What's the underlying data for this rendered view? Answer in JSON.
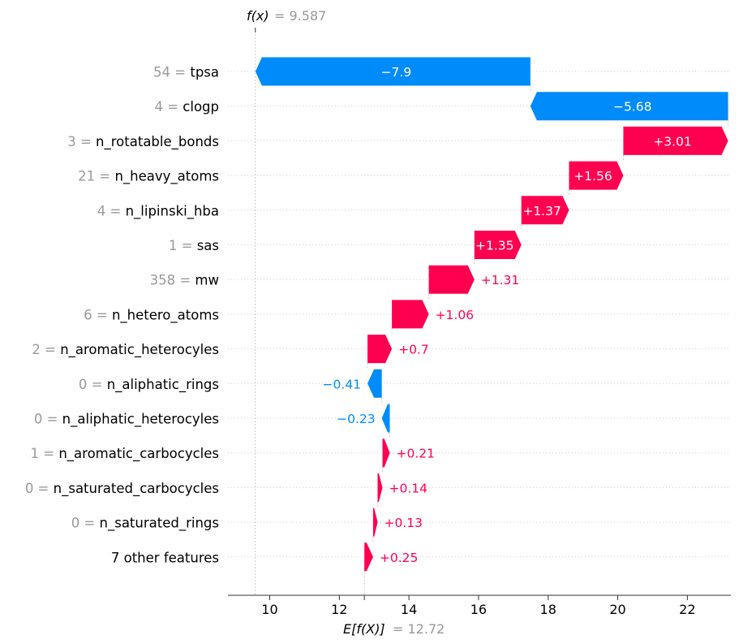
{
  "chart_data": {
    "type": "waterfall",
    "fx_label": "f(x)",
    "fx_value_text": "= 9.587",
    "fx_value": 9.587,
    "efx_label": "E[f(X)]",
    "efx_value_text": "= 12.72",
    "efx_value": 12.72,
    "xlim": [
      8.8,
      23.25
    ],
    "xticks": [
      10,
      12,
      14,
      16,
      18,
      20,
      22
    ],
    "grid": true,
    "colors": {
      "positive": "#ff0051",
      "negative": "#008bfb",
      "feature_value": "#999999",
      "text": "#000000"
    },
    "features": [
      {
        "value": "54",
        "name": "tpsa",
        "contribution": -7.9,
        "label": "−7.9"
      },
      {
        "value": "4",
        "name": "clogp",
        "contribution": -5.68,
        "label": "−5.68"
      },
      {
        "value": "3",
        "name": "n_rotatable_bonds",
        "contribution": 3.01,
        "label": "+3.01"
      },
      {
        "value": "21",
        "name": "n_heavy_atoms",
        "contribution": 1.56,
        "label": "+1.56"
      },
      {
        "value": "4",
        "name": "n_lipinski_hba",
        "contribution": 1.37,
        "label": "+1.37"
      },
      {
        "value": "1",
        "name": "sas",
        "contribution": 1.35,
        "label": "+1.35"
      },
      {
        "value": "358",
        "name": "mw",
        "contribution": 1.31,
        "label": "+1.31"
      },
      {
        "value": "6",
        "name": "n_hetero_atoms",
        "contribution": 1.06,
        "label": "+1.06"
      },
      {
        "value": "2",
        "name": "n_aromatic_heterocyles",
        "contribution": 0.7,
        "label": "+0.7"
      },
      {
        "value": "0",
        "name": "n_aliphatic_rings",
        "contribution": -0.41,
        "label": "−0.41"
      },
      {
        "value": "0",
        "name": "n_aliphatic_heterocyles",
        "contribution": -0.23,
        "label": "−0.23"
      },
      {
        "value": "1",
        "name": "n_aromatic_carbocycles",
        "contribution": 0.21,
        "label": "+0.21"
      },
      {
        "value": "0",
        "name": "n_saturated_carbocycles",
        "contribution": 0.14,
        "label": "+0.14"
      },
      {
        "value": "0",
        "name": "n_saturated_rings",
        "contribution": 0.13,
        "label": "+0.13"
      },
      {
        "value": "",
        "name": "7 other features",
        "contribution": 0.25,
        "label": "+0.25"
      }
    ]
  }
}
